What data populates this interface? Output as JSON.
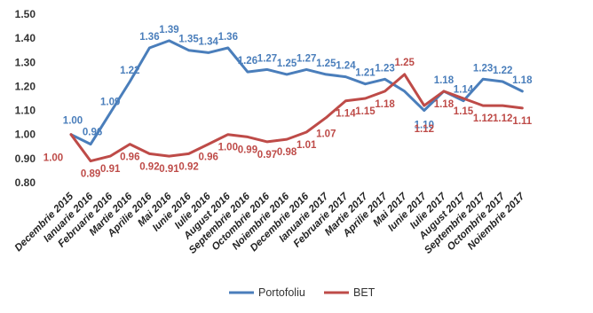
{
  "chart_data": {
    "type": "line",
    "title": "",
    "xlabel": "",
    "ylabel": "",
    "ylim": [
      0.8,
      1.5
    ],
    "yticks": [
      "0.80",
      "0.90",
      "1.00",
      "1.10",
      "1.20",
      "1.30",
      "1.40",
      "1.50"
    ],
    "grid": false,
    "legend_position": "bottom",
    "categories": [
      "Decembrie 2015",
      "Ianuarie 2016",
      "Februarie 2016",
      "Martie 2016",
      "Aprilie 2016",
      "Mai 2016",
      "Iunie 2016",
      "Iulie 2016",
      "August 2016",
      "Septembrie 2016",
      "Octombrie 2016",
      "Noiembrie 2016",
      "Decembrie 2016",
      "Ianuarie 2017",
      "Februarie 2017",
      "Martie 2017",
      "Aprilie 2017",
      "Mai 2017",
      "Iunie 2017",
      "Iulie 2017",
      "August 2017",
      "Septembrie 2017",
      "Octombrie 2017",
      "Noiembrie 2017"
    ],
    "series": [
      {
        "name": "Portofoliu",
        "color": "#4a7ebb",
        "values": [
          1.0,
          0.96,
          1.09,
          1.22,
          1.36,
          1.39,
          1.35,
          1.34,
          1.36,
          1.26,
          1.27,
          1.25,
          1.27,
          1.25,
          1.24,
          1.21,
          1.23,
          1.18,
          1.1,
          1.18,
          1.14,
          1.23,
          1.22,
          1.18
        ],
        "labels": [
          "1.00",
          "0.96",
          "1.09",
          "1.22",
          "1.36",
          "1.39",
          "1.35",
          "1.34",
          "1.36",
          "1.26",
          "1.27",
          "1.25",
          "1.27",
          "1.25",
          "1.24",
          "1.21",
          "1.23",
          "",
          "1.10",
          "1.18",
          "1.14",
          "1.23",
          "1.22",
          "1.18"
        ]
      },
      {
        "name": "BET",
        "color": "#be4b48",
        "values": [
          1.0,
          0.89,
          0.91,
          0.96,
          0.92,
          0.91,
          0.92,
          0.96,
          1.0,
          0.99,
          0.97,
          0.98,
          1.01,
          1.07,
          1.14,
          1.15,
          1.18,
          1.25,
          1.12,
          1.18,
          1.15,
          1.12,
          1.12,
          1.11
        ],
        "labels": [
          "1.00",
          "0.89",
          "0.91",
          "0.96",
          "0.92",
          "0.91",
          "0.92",
          "0.96",
          "1.00",
          "0.99",
          "0.97",
          "0.98",
          "1.01",
          "1.07",
          "1.14",
          "1.15",
          "1.18",
          "1.25",
          "1.12",
          "1.18",
          "1.15",
          "1.12",
          "1.12",
          "1.11"
        ]
      }
    ]
  }
}
